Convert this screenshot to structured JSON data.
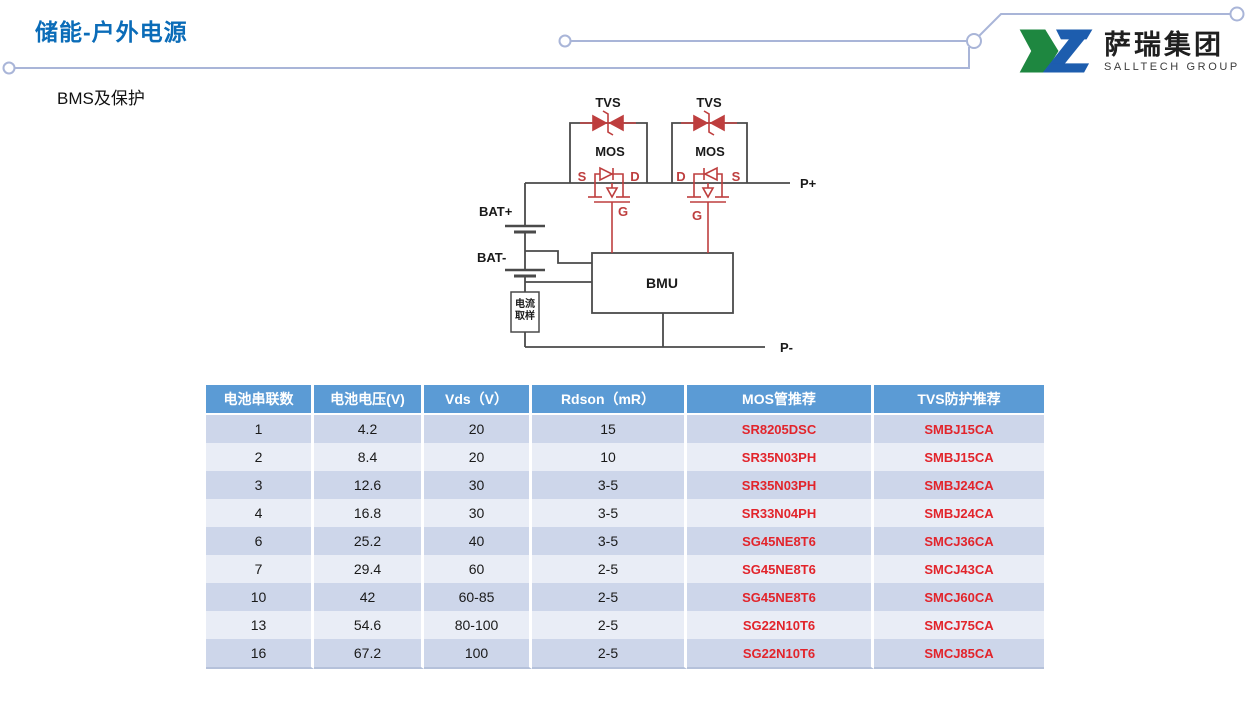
{
  "slide_title": "储能-户外电源",
  "section_title": "BMS及保护",
  "logo": {
    "company_cn": "萨瑞集团",
    "company_en": "SALLTECH GROUP"
  },
  "circuit": {
    "tvs_label_1": "TVS",
    "tvs_label_2": "TVS",
    "mos_label_1": "MOS",
    "mos_label_2": "MOS",
    "mos1_source": "S",
    "mos1_drain": "D",
    "mos1_gate": "G",
    "mos2_drain": "D",
    "mos2_source": "S",
    "mos2_gate": "G",
    "battery_positive": "BAT+",
    "battery_negative": "BAT-",
    "bmu_label": "BMU",
    "current_sample_line1": "电流",
    "current_sample_line2": "取样",
    "pack_positive": "P+",
    "pack_negative": "P-"
  },
  "table": {
    "columns": [
      "电池串联数",
      "电池电压(V)",
      "Vds（V）",
      "Rdson（mR）",
      "MOS管推荐",
      "TVS防护推荐"
    ],
    "rows": [
      [
        "1",
        "4.2",
        "20",
        "15",
        "SR8205DSC",
        "SMBJ15CA"
      ],
      [
        "2",
        "8.4",
        "20",
        "10",
        "SR35N03PH",
        "SMBJ15CA"
      ],
      [
        "3",
        "12.6",
        "30",
        "3-5",
        "SR35N03PH",
        "SMBJ24CA"
      ],
      [
        "4",
        "16.8",
        "30",
        "3-5",
        "SR33N04PH",
        "SMBJ24CA"
      ],
      [
        "6",
        "25.2",
        "40",
        "3-5",
        "SG45NE8T6",
        "SMCJ36CA"
      ],
      [
        "7",
        "29.4",
        "60",
        "2-5",
        "SG45NE8T6",
        "SMCJ43CA"
      ],
      [
        "10",
        "42",
        "60-85",
        "2-5",
        "SG45NE8T6",
        "SMCJ60CA"
      ],
      [
        "13",
        "54.6",
        "80-100",
        "2-5",
        "SG22N10T6",
        "SMCJ75CA"
      ],
      [
        "16",
        "67.2",
        "100",
        "2-5",
        "SG22N10T6",
        "SMCJ85CA"
      ]
    ]
  },
  "colors": {
    "title_blue": "#0B6CB8",
    "header_bg": "#5B9BD5",
    "row_band_dark": "#CDD6EA",
    "row_band_light": "#E9EDF6",
    "table_red": "#E2242B",
    "circuit_red": "#BE3E3E",
    "circuit_line": "#4A4A4A",
    "decor_line": "#A9B5D8",
    "logo_green": "#1E8740",
    "logo_blue": "#1D5DAE"
  }
}
